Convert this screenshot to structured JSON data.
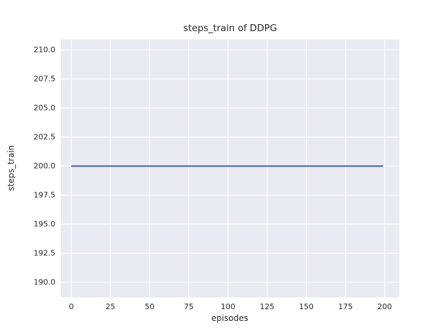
{
  "chart_data": {
    "type": "line",
    "title": "steps_train of DDPG",
    "xlabel": "episodes",
    "ylabel": "steps_train",
    "series": [
      {
        "name": "steps_train",
        "x": [
          0,
          199
        ],
        "y": [
          200,
          200
        ],
        "color": "#4c72b0",
        "line_width": 2.2,
        "note": "constant horizontal line at 200 steps for every episode from 0 to 199"
      }
    ],
    "xticks": {
      "values": [
        0,
        25,
        50,
        75,
        100,
        125,
        150,
        175,
        200
      ],
      "labels": [
        "0",
        "25",
        "50",
        "75",
        "100",
        "125",
        "150",
        "175",
        "200"
      ]
    },
    "yticks": {
      "values": [
        190.0,
        192.5,
        195.0,
        197.5,
        200.0,
        202.5,
        205.0,
        207.5,
        210.0
      ],
      "labels": [
        "190.0",
        "192.5",
        "195.0",
        "197.5",
        "200.0",
        "202.5",
        "205.0",
        "207.5",
        "210.0"
      ]
    },
    "xlim": [
      -6.6,
      209.4
    ],
    "ylim": [
      188.7,
      210.9
    ],
    "grid": true,
    "legend": "none",
    "style": {
      "figure_background": "#ffffff",
      "axes_background": "#eaeaf2",
      "grid_color": "#ffffff",
      "grid_width": 1.3,
      "text_color": "#262626"
    }
  }
}
